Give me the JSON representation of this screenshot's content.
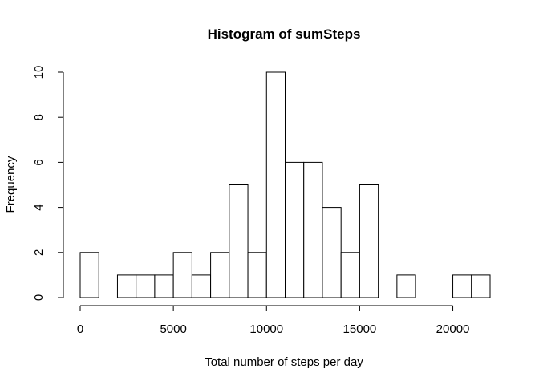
{
  "chart_data": {
    "type": "bar",
    "title": "Histogram of sumSteps",
    "xlabel": "Total number of steps per day",
    "ylabel": "Frequency",
    "bin_width": 1000,
    "bins": [
      {
        "start": 0,
        "end": 1000,
        "count": 2
      },
      {
        "start": 1000,
        "end": 2000,
        "count": 0
      },
      {
        "start": 2000,
        "end": 3000,
        "count": 1
      },
      {
        "start": 3000,
        "end": 4000,
        "count": 1
      },
      {
        "start": 4000,
        "end": 5000,
        "count": 1
      },
      {
        "start": 5000,
        "end": 6000,
        "count": 2
      },
      {
        "start": 6000,
        "end": 7000,
        "count": 1
      },
      {
        "start": 7000,
        "end": 8000,
        "count": 2
      },
      {
        "start": 8000,
        "end": 9000,
        "count": 5
      },
      {
        "start": 9000,
        "end": 10000,
        "count": 2
      },
      {
        "start": 10000,
        "end": 11000,
        "count": 10
      },
      {
        "start": 11000,
        "end": 12000,
        "count": 6
      },
      {
        "start": 12000,
        "end": 13000,
        "count": 6
      },
      {
        "start": 13000,
        "end": 14000,
        "count": 4
      },
      {
        "start": 14000,
        "end": 15000,
        "count": 2
      },
      {
        "start": 15000,
        "end": 16000,
        "count": 5
      },
      {
        "start": 16000,
        "end": 17000,
        "count": 0
      },
      {
        "start": 17000,
        "end": 18000,
        "count": 1
      },
      {
        "start": 18000,
        "end": 19000,
        "count": 0
      },
      {
        "start": 19000,
        "end": 20000,
        "count": 0
      },
      {
        "start": 20000,
        "end": 21000,
        "count": 1
      },
      {
        "start": 21000,
        "end": 22000,
        "count": 1
      }
    ],
    "xlim": [
      0,
      22000
    ],
    "ylim": [
      0,
      10
    ],
    "x_ticks": [
      0,
      5000,
      10000,
      15000,
      20000
    ],
    "x_tick_labels": [
      "0",
      "5000",
      "10000",
      "15000",
      "20000"
    ],
    "y_ticks": [
      0,
      2,
      4,
      6,
      8,
      10
    ],
    "y_tick_labels": [
      "0",
      "2",
      "4",
      "6",
      "8",
      "10"
    ],
    "grid": false,
    "legend": "none",
    "bar_fill": "#ffffff",
    "bar_stroke": "#000000"
  }
}
